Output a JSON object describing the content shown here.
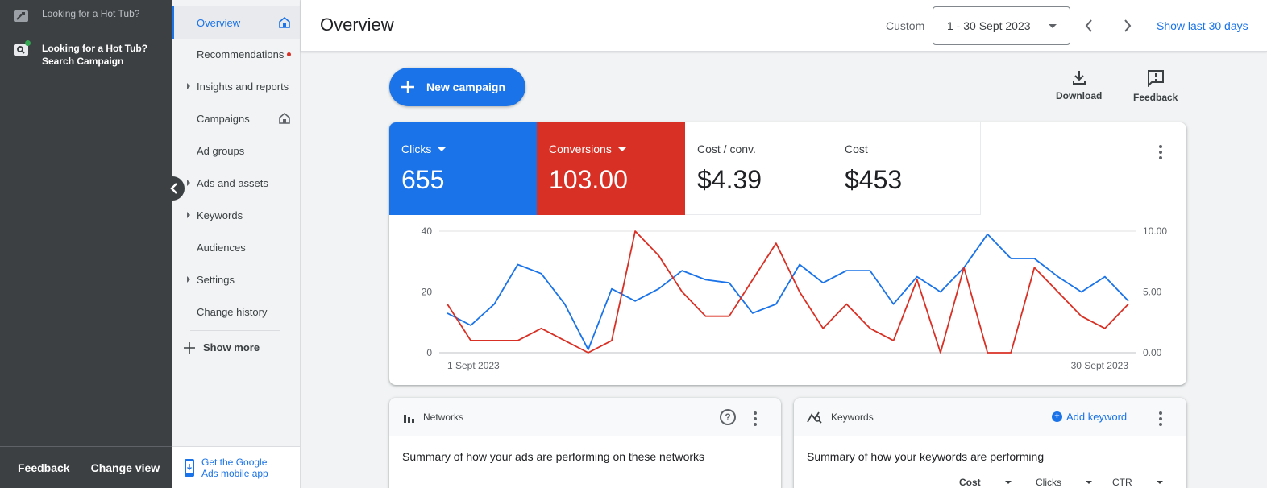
{
  "rail": {
    "account_name": "Looking for a Hot Tub?",
    "campaign_name_line1": "Looking for a Hot Tub?",
    "campaign_name_line2": "Search Campaign",
    "feedback": "Feedback",
    "change_view": "Change view"
  },
  "nav": {
    "items": [
      {
        "label": "Overview"
      },
      {
        "label": "Recommendations"
      },
      {
        "label": "Insights and reports"
      },
      {
        "label": "Campaigns"
      },
      {
        "label": "Ad groups"
      },
      {
        "label": "Ads and assets"
      },
      {
        "label": "Keywords"
      },
      {
        "label": "Audiences"
      },
      {
        "label": "Settings"
      },
      {
        "label": "Change history"
      }
    ],
    "show_more": "Show more",
    "mobile_app_line1": "Get the Google",
    "mobile_app_line2": "Ads mobile app"
  },
  "header": {
    "title": "Overview",
    "custom_label": "Custom",
    "date_range": "1 - 30 Sept 2023",
    "show_last": "Show last 30 days"
  },
  "toolbar": {
    "new_campaign": "New campaign",
    "download": "Download",
    "feedback": "Feedback"
  },
  "metrics": [
    {
      "label": "Clicks",
      "value": "655"
    },
    {
      "label": "Conversions",
      "value": "103.00"
    },
    {
      "label": "Cost / conv.",
      "value": "$4.39"
    },
    {
      "label": "Cost",
      "value": "$453"
    }
  ],
  "chart_data": {
    "type": "line",
    "x_start_label": "1 Sept 2023",
    "x_end_label": "30 Sept 2023",
    "y_left_ticks": [
      "0",
      "20",
      "40"
    ],
    "y_right_ticks": [
      "0.00",
      "5.00",
      "10.00"
    ],
    "ylim_left": [
      0,
      40
    ],
    "ylim_right": [
      0,
      10
    ],
    "grid": true,
    "series": [
      {
        "name": "Clicks",
        "axis": "left",
        "color": "#1a73e8",
        "values": [
          13,
          9,
          16,
          29,
          26,
          16,
          1,
          21,
          17,
          21,
          27,
          24,
          23,
          13,
          16,
          29,
          23,
          27,
          27,
          16,
          25,
          20,
          28,
          39,
          31,
          31,
          25,
          20,
          25,
          17
        ]
      },
      {
        "name": "Conversions",
        "axis": "right",
        "color": "#d93025",
        "values": [
          4,
          1,
          1,
          1,
          2,
          1,
          0,
          1,
          10,
          8,
          5,
          3,
          3,
          6,
          9,
          5,
          2,
          4,
          2,
          1,
          6,
          0,
          7,
          0,
          0,
          7,
          5,
          3,
          2,
          4
        ]
      }
    ]
  },
  "networks_card": {
    "title": "Networks",
    "subtitle": "Summary of how your ads are performing on these networks"
  },
  "keywords_card": {
    "title": "Keywords",
    "add_keyword": "Add keyword",
    "subtitle": "Summary of how your keywords are performing",
    "columns": [
      "Cost",
      "Clicks",
      "CTR"
    ]
  }
}
